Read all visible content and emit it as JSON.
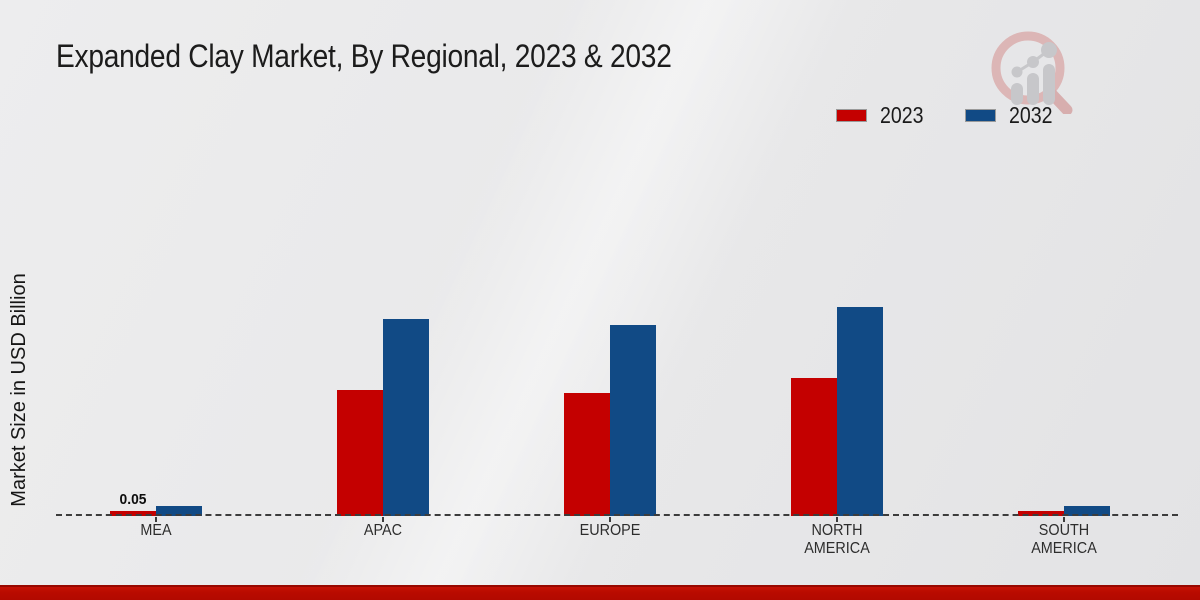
{
  "page": {
    "title": "Expanded Clay Market, By Regional, 2023 & 2032"
  },
  "chart_data": {
    "type": "bar",
    "title": "Expanded Clay Market, By Regional, 2023 & 2032",
    "xlabel": "",
    "ylabel": "Market Size in USD Billion",
    "categories": [
      "MEA",
      "APAC",
      "EUROPE",
      "NORTH\nAMERICA",
      "SOUTH\nAMERICA"
    ],
    "series": [
      {
        "name": "2023",
        "color": "#c40000",
        "values": [
          0.05,
          1.4,
          1.37,
          1.53,
          0.05
        ]
      },
      {
        "name": "2032",
        "color": "#114a85",
        "values": [
          0.11,
          2.19,
          2.12,
          2.32,
          0.11
        ]
      }
    ],
    "value_labels": [
      {
        "series_index": 0,
        "category_index": 0,
        "text": "0.05"
      }
    ],
    "ylim": [
      0,
      2.5
    ],
    "grid": false,
    "baseline_style": "dashed",
    "legend_position": "top-right"
  },
  "branding": {
    "logo_icon": "magnifier-bar-chart-logo",
    "footer_bar_color": "#bb0a00"
  },
  "colors": {
    "series_2023": "#c40000",
    "series_2032": "#114a85",
    "background": "#e9e9ea",
    "axis": "#3c3c3c",
    "text": "#1c1c1c"
  }
}
